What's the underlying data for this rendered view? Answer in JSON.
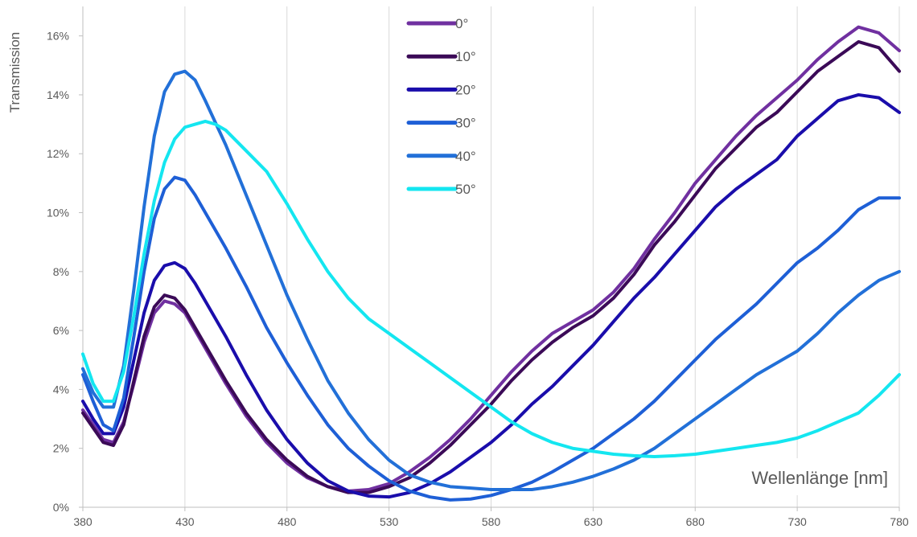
{
  "chart_data": {
    "type": "line",
    "title": "",
    "xlabel": "Wellenlänge [nm]",
    "ylabel": "Transmission",
    "xlim": [
      380,
      780
    ],
    "ylim": [
      0,
      0.17
    ],
    "x_ticks": [
      380,
      430,
      480,
      530,
      580,
      630,
      680,
      730,
      780
    ],
    "y_ticks": [
      0,
      0.02,
      0.04,
      0.06,
      0.08,
      0.1,
      0.12,
      0.14,
      0.16
    ],
    "y_tick_labels": [
      "0%",
      "2%",
      "4%",
      "6%",
      "8%",
      "10%",
      "12%",
      "14%",
      "16%"
    ],
    "grid": "vertical",
    "legend_position": "top-center",
    "series": [
      {
        "name": "0°",
        "color": "#7030A0",
        "points": [
          [
            380,
            3.3
          ],
          [
            385,
            2.8
          ],
          [
            390,
            2.3
          ],
          [
            395,
            2.2
          ],
          [
            400,
            2.9
          ],
          [
            405,
            4.2
          ],
          [
            410,
            5.6
          ],
          [
            415,
            6.6
          ],
          [
            420,
            7.0
          ],
          [
            425,
            6.9
          ],
          [
            430,
            6.6
          ],
          [
            435,
            6.0
          ],
          [
            440,
            5.4
          ],
          [
            450,
            4.2
          ],
          [
            460,
            3.1
          ],
          [
            470,
            2.2
          ],
          [
            480,
            1.5
          ],
          [
            490,
            1.0
          ],
          [
            500,
            0.7
          ],
          [
            510,
            0.55
          ],
          [
            520,
            0.6
          ],
          [
            530,
            0.8
          ],
          [
            540,
            1.2
          ],
          [
            550,
            1.7
          ],
          [
            560,
            2.3
          ],
          [
            570,
            3.0
          ],
          [
            580,
            3.8
          ],
          [
            590,
            4.6
          ],
          [
            600,
            5.3
          ],
          [
            610,
            5.9
          ],
          [
            620,
            6.3
          ],
          [
            630,
            6.7
          ],
          [
            640,
            7.3
          ],
          [
            650,
            8.1
          ],
          [
            660,
            9.1
          ],
          [
            670,
            10.0
          ],
          [
            680,
            11.0
          ],
          [
            690,
            11.8
          ],
          [
            700,
            12.6
          ],
          [
            710,
            13.3
          ],
          [
            720,
            13.9
          ],
          [
            730,
            14.5
          ],
          [
            740,
            15.2
          ],
          [
            750,
            15.8
          ],
          [
            760,
            16.3
          ],
          [
            770,
            16.1
          ],
          [
            780,
            15.5
          ]
        ]
      },
      {
        "name": "10°",
        "color": "#3B0A57",
        "points": [
          [
            380,
            3.2
          ],
          [
            385,
            2.7
          ],
          [
            390,
            2.2
          ],
          [
            395,
            2.1
          ],
          [
            400,
            2.8
          ],
          [
            405,
            4.3
          ],
          [
            410,
            5.8
          ],
          [
            415,
            6.8
          ],
          [
            420,
            7.2
          ],
          [
            425,
            7.1
          ],
          [
            430,
            6.7
          ],
          [
            435,
            6.1
          ],
          [
            440,
            5.5
          ],
          [
            450,
            4.3
          ],
          [
            460,
            3.2
          ],
          [
            470,
            2.3
          ],
          [
            480,
            1.6
          ],
          [
            490,
            1.05
          ],
          [
            500,
            0.7
          ],
          [
            510,
            0.5
          ],
          [
            520,
            0.5
          ],
          [
            530,
            0.7
          ],
          [
            540,
            1.0
          ],
          [
            550,
            1.5
          ],
          [
            560,
            2.1
          ],
          [
            570,
            2.8
          ],
          [
            580,
            3.5
          ],
          [
            590,
            4.3
          ],
          [
            600,
            5.0
          ],
          [
            610,
            5.6
          ],
          [
            620,
            6.1
          ],
          [
            630,
            6.5
          ],
          [
            640,
            7.1
          ],
          [
            650,
            7.9
          ],
          [
            660,
            8.9
          ],
          [
            670,
            9.7
          ],
          [
            680,
            10.6
          ],
          [
            690,
            11.5
          ],
          [
            700,
            12.2
          ],
          [
            710,
            12.9
          ],
          [
            720,
            13.4
          ],
          [
            730,
            14.1
          ],
          [
            740,
            14.8
          ],
          [
            750,
            15.3
          ],
          [
            760,
            15.8
          ],
          [
            770,
            15.6
          ],
          [
            780,
            14.8
          ]
        ]
      },
      {
        "name": "20°",
        "color": "#1A0DAB",
        "points": [
          [
            380,
            3.6
          ],
          [
            385,
            3.0
          ],
          [
            390,
            2.5
          ],
          [
            395,
            2.5
          ],
          [
            400,
            3.4
          ],
          [
            405,
            5.0
          ],
          [
            410,
            6.6
          ],
          [
            415,
            7.7
          ],
          [
            420,
            8.2
          ],
          [
            425,
            8.3
          ],
          [
            430,
            8.1
          ],
          [
            435,
            7.6
          ],
          [
            440,
            7.0
          ],
          [
            450,
            5.8
          ],
          [
            460,
            4.5
          ],
          [
            470,
            3.3
          ],
          [
            480,
            2.3
          ],
          [
            490,
            1.5
          ],
          [
            500,
            0.9
          ],
          [
            510,
            0.55
          ],
          [
            520,
            0.38
          ],
          [
            530,
            0.35
          ],
          [
            540,
            0.5
          ],
          [
            550,
            0.8
          ],
          [
            560,
            1.2
          ],
          [
            570,
            1.7
          ],
          [
            580,
            2.2
          ],
          [
            590,
            2.8
          ],
          [
            600,
            3.5
          ],
          [
            610,
            4.1
          ],
          [
            620,
            4.8
          ],
          [
            630,
            5.5
          ],
          [
            640,
            6.3
          ],
          [
            650,
            7.1
          ],
          [
            660,
            7.8
          ],
          [
            670,
            8.6
          ],
          [
            680,
            9.4
          ],
          [
            690,
            10.2
          ],
          [
            700,
            10.8
          ],
          [
            710,
            11.3
          ],
          [
            720,
            11.8
          ],
          [
            730,
            12.6
          ],
          [
            740,
            13.2
          ],
          [
            750,
            13.8
          ],
          [
            760,
            14.0
          ],
          [
            770,
            13.9
          ],
          [
            780,
            13.4
          ]
        ]
      },
      {
        "name": "30°",
        "color": "#1E5FD6",
        "points": [
          [
            380,
            4.5
          ],
          [
            385,
            3.6
          ],
          [
            390,
            2.8
          ],
          [
            395,
            2.6
          ],
          [
            400,
            3.7
          ],
          [
            405,
            5.8
          ],
          [
            410,
            8.0
          ],
          [
            415,
            9.8
          ],
          [
            420,
            10.8
          ],
          [
            425,
            11.2
          ],
          [
            430,
            11.1
          ],
          [
            435,
            10.6
          ],
          [
            440,
            10.0
          ],
          [
            450,
            8.8
          ],
          [
            460,
            7.5
          ],
          [
            470,
            6.1
          ],
          [
            480,
            4.9
          ],
          [
            490,
            3.8
          ],
          [
            500,
            2.8
          ],
          [
            510,
            2.0
          ],
          [
            520,
            1.4
          ],
          [
            530,
            0.9
          ],
          [
            540,
            0.55
          ],
          [
            550,
            0.35
          ],
          [
            560,
            0.25
          ],
          [
            570,
            0.28
          ],
          [
            580,
            0.4
          ],
          [
            590,
            0.6
          ],
          [
            600,
            0.85
          ],
          [
            610,
            1.2
          ],
          [
            620,
            1.6
          ],
          [
            630,
            2.0
          ],
          [
            640,
            2.5
          ],
          [
            650,
            3.0
          ],
          [
            660,
            3.6
          ],
          [
            670,
            4.3
          ],
          [
            680,
            5.0
          ],
          [
            690,
            5.7
          ],
          [
            700,
            6.3
          ],
          [
            710,
            6.9
          ],
          [
            720,
            7.6
          ],
          [
            730,
            8.3
          ],
          [
            740,
            8.8
          ],
          [
            750,
            9.4
          ],
          [
            760,
            10.1
          ],
          [
            770,
            10.5
          ],
          [
            780,
            10.5
          ]
        ]
      },
      {
        "name": "40°",
        "color": "#2270D8",
        "points": [
          [
            380,
            4.7
          ],
          [
            385,
            3.9
          ],
          [
            390,
            3.4
          ],
          [
            395,
            3.4
          ],
          [
            400,
            4.8
          ],
          [
            405,
            7.4
          ],
          [
            410,
            10.2
          ],
          [
            415,
            12.6
          ],
          [
            420,
            14.1
          ],
          [
            425,
            14.7
          ],
          [
            430,
            14.8
          ],
          [
            435,
            14.5
          ],
          [
            440,
            13.8
          ],
          [
            450,
            12.3
          ],
          [
            460,
            10.6
          ],
          [
            470,
            8.9
          ],
          [
            480,
            7.2
          ],
          [
            490,
            5.7
          ],
          [
            500,
            4.3
          ],
          [
            510,
            3.2
          ],
          [
            520,
            2.3
          ],
          [
            530,
            1.6
          ],
          [
            540,
            1.1
          ],
          [
            550,
            0.85
          ],
          [
            560,
            0.7
          ],
          [
            570,
            0.65
          ],
          [
            580,
            0.6
          ],
          [
            590,
            0.6
          ],
          [
            600,
            0.6
          ],
          [
            610,
            0.7
          ],
          [
            620,
            0.85
          ],
          [
            630,
            1.05
          ],
          [
            640,
            1.3
          ],
          [
            650,
            1.6
          ],
          [
            660,
            2.0
          ],
          [
            670,
            2.5
          ],
          [
            680,
            3.0
          ],
          [
            690,
            3.5
          ],
          [
            700,
            4.0
          ],
          [
            710,
            4.5
          ],
          [
            720,
            4.9
          ],
          [
            730,
            5.3
          ],
          [
            740,
            5.9
          ],
          [
            750,
            6.6
          ],
          [
            760,
            7.2
          ],
          [
            770,
            7.7
          ],
          [
            780,
            8.0
          ]
        ]
      },
      {
        "name": "50°",
        "color": "#14E6F0",
        "points": [
          [
            380,
            5.2
          ],
          [
            385,
            4.2
          ],
          [
            390,
            3.6
          ],
          [
            395,
            3.6
          ],
          [
            400,
            4.6
          ],
          [
            405,
            6.5
          ],
          [
            410,
            8.6
          ],
          [
            415,
            10.4
          ],
          [
            420,
            11.7
          ],
          [
            425,
            12.5
          ],
          [
            430,
            12.9
          ],
          [
            435,
            13.0
          ],
          [
            440,
            13.1
          ],
          [
            445,
            13.0
          ],
          [
            450,
            12.8
          ],
          [
            460,
            12.1
          ],
          [
            470,
            11.4
          ],
          [
            480,
            10.3
          ],
          [
            490,
            9.1
          ],
          [
            500,
            8.0
          ],
          [
            510,
            7.1
          ],
          [
            520,
            6.4
          ],
          [
            530,
            5.9
          ],
          [
            540,
            5.4
          ],
          [
            550,
            4.9
          ],
          [
            560,
            4.4
          ],
          [
            570,
            3.9
          ],
          [
            580,
            3.4
          ],
          [
            590,
            2.9
          ],
          [
            600,
            2.5
          ],
          [
            610,
            2.2
          ],
          [
            620,
            2.0
          ],
          [
            630,
            1.9
          ],
          [
            640,
            1.8
          ],
          [
            650,
            1.75
          ],
          [
            660,
            1.72
          ],
          [
            670,
            1.75
          ],
          [
            680,
            1.8
          ],
          [
            690,
            1.9
          ],
          [
            700,
            2.0
          ],
          [
            710,
            2.1
          ],
          [
            720,
            2.2
          ],
          [
            730,
            2.35
          ],
          [
            740,
            2.6
          ],
          [
            750,
            2.9
          ],
          [
            760,
            3.2
          ],
          [
            770,
            3.8
          ],
          [
            780,
            4.5
          ]
        ]
      }
    ]
  }
}
